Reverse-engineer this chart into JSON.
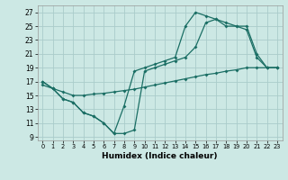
{
  "title": "",
  "xlabel": "Humidex (Indice chaleur)",
  "bg_color": "#cce8e4",
  "grid_color": "#aaccca",
  "line_color": "#1a6e64",
  "xlim": [
    -0.5,
    23.5
  ],
  "ylim": [
    8.5,
    28
  ],
  "yticks": [
    9,
    11,
    13,
    15,
    17,
    19,
    21,
    23,
    25,
    27
  ],
  "xticks": [
    0,
    1,
    2,
    3,
    4,
    5,
    6,
    7,
    8,
    9,
    10,
    11,
    12,
    13,
    14,
    15,
    16,
    17,
    18,
    19,
    20,
    21,
    22,
    23
  ],
  "line1_x": [
    0,
    1,
    2,
    3,
    4,
    5,
    6,
    7,
    8,
    9,
    10,
    11,
    12,
    13,
    14,
    15,
    16,
    17,
    18,
    19,
    20,
    21,
    22,
    23
  ],
  "line1_y": [
    17,
    16,
    14.5,
    14,
    12.5,
    12,
    11,
    9.5,
    9.5,
    10,
    18.5,
    19,
    19.5,
    20,
    20.5,
    22,
    25.5,
    26,
    25,
    25,
    24.5,
    20.5,
    19,
    19
  ],
  "line2_x": [
    0,
    1,
    2,
    3,
    4,
    5,
    6,
    7,
    8,
    9,
    10,
    11,
    12,
    13,
    14,
    15,
    16,
    17,
    18,
    19,
    20,
    21,
    22,
    23
  ],
  "line2_y": [
    17,
    16,
    14.5,
    14,
    12.5,
    12,
    11,
    9.5,
    13.5,
    18.5,
    19,
    19.5,
    20,
    20.5,
    25,
    27,
    26.5,
    26,
    25.5,
    25,
    25,
    21,
    19,
    19
  ],
  "line3_x": [
    0,
    1,
    2,
    3,
    4,
    5,
    6,
    7,
    8,
    9,
    10,
    11,
    12,
    13,
    14,
    15,
    16,
    17,
    18,
    19,
    20,
    21,
    22,
    23
  ],
  "line3_y": [
    16.5,
    16,
    15.5,
    15,
    15,
    15.2,
    15.3,
    15.5,
    15.7,
    15.9,
    16.2,
    16.5,
    16.8,
    17.1,
    17.4,
    17.7,
    18,
    18.2,
    18.5,
    18.7,
    19,
    19,
    19,
    19
  ]
}
